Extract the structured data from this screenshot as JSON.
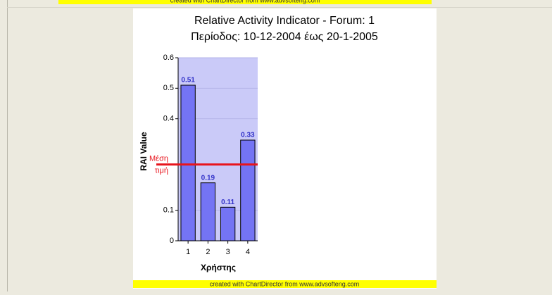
{
  "chart_data": {
    "type": "bar",
    "title": "Relative Activity Indicator - Forum: 1",
    "subtitle": "Περίοδος: 10-12-2004 έως 20-1-2005",
    "x_label": "Χρήστης",
    "y_label": "RAI Value",
    "categories": [
      "1",
      "2",
      "3",
      "4"
    ],
    "values": [
      0.51,
      0.19,
      0.11,
      0.33
    ],
    "color": "#7474f4",
    "ylim": [
      0,
      0.6
    ],
    "yticks": [
      0,
      0.1,
      0.4,
      0.5,
      0.6
    ],
    "mean": {
      "value": 0.25,
      "label": [
        "Μέση",
        "τιμή"
      ],
      "color": "#e8141c"
    },
    "footer": "created with ChartDirector from www.advsofteng.com"
  }
}
